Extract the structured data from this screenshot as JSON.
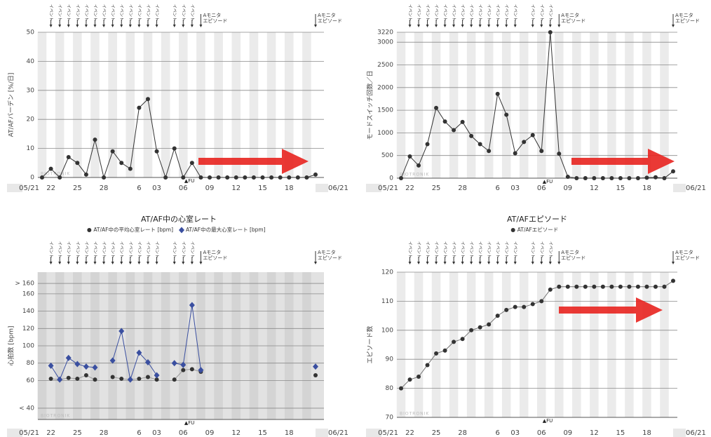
{
  "chart_data": [
    {
      "type": "line",
      "ylabel": "AT/AFバーデン [%/日]",
      "categories": [
        "05/21",
        "22",
        null,
        null,
        "25",
        null,
        null,
        "28",
        null,
        null,
        null,
        "6",
        null,
        "03",
        null,
        null,
        "06",
        null,
        null,
        "09",
        null,
        null,
        "12",
        null,
        null,
        "15",
        null,
        null,
        "18",
        null,
        null,
        "06/21"
      ],
      "series": [
        {
          "color": "#333333",
          "marker": "circle",
          "values": [
            0,
            3,
            0,
            7,
            5,
            1,
            13,
            0,
            9,
            5,
            3,
            24,
            27,
            9,
            0,
            10,
            0,
            5,
            0,
            0,
            0,
            0,
            0,
            0,
            0,
            0,
            0,
            0,
            0,
            0,
            0,
            1
          ]
        }
      ],
      "ylim": [
        0,
        50
      ],
      "yticks": [
        0,
        10,
        20,
        30,
        40,
        50
      ],
      "grid": true
    },
    {
      "type": "line",
      "ylabel": "モードスイッチ回数／日",
      "categories": [
        "05/21",
        "22",
        null,
        null,
        "25",
        null,
        null,
        "28",
        null,
        null,
        null,
        "6",
        null,
        "03",
        null,
        null,
        "06",
        null,
        null,
        "09",
        null,
        null,
        "12",
        null,
        null,
        "15",
        null,
        null,
        "18",
        null,
        null,
        "06/21"
      ],
      "series": [
        {
          "color": "#333333",
          "marker": "circle",
          "values": [
            0,
            480,
            280,
            750,
            1550,
            1250,
            1060,
            1240,
            930,
            750,
            600,
            1860,
            1400,
            550,
            800,
            950,
            600,
            3220,
            540,
            30,
            0,
            0,
            0,
            0,
            0,
            0,
            0,
            0,
            10,
            20,
            0,
            150
          ]
        }
      ],
      "ylim": [
        0,
        3220
      ],
      "yticks": [
        0,
        500,
        1000,
        1500,
        2000,
        2500,
        3000,
        3220
      ],
      "grid": true
    },
    {
      "type": "line",
      "title": "AT/AF中の心室レート",
      "ylabel": "心拍数 [bpm]",
      "categories": [
        "05/21",
        "22",
        null,
        null,
        "25",
        null,
        null,
        "28",
        null,
        null,
        null,
        "6",
        null,
        "03",
        null,
        null,
        "06",
        null,
        null,
        "09",
        null,
        null,
        "12",
        null,
        null,
        "15",
        null,
        null,
        "18",
        null,
        null,
        "06/21"
      ],
      "series": [
        {
          "name": "AT/AF中の平均心室レート [bpm]",
          "color": "#333333",
          "line_color": "#999999",
          "marker": "circle",
          "values": [
            null,
            62,
            61,
            63,
            62,
            66,
            61,
            null,
            64,
            62,
            61,
            62,
            64,
            61,
            null,
            61,
            72,
            73,
            70,
            null,
            null,
            null,
            null,
            null,
            null,
            null,
            null,
            null,
            null,
            null,
            null,
            66
          ]
        },
        {
          "name": "AT/AF中の最大心室レート [bpm]",
          "color": "#3a4fa0",
          "line_color": "#3a4fa0",
          "marker": "diamond",
          "values": [
            null,
            77,
            61,
            86,
            79,
            76,
            75,
            null,
            83,
            117,
            61,
            92,
            81,
            66,
            null,
            80,
            78,
            147,
            72,
            null,
            null,
            null,
            null,
            null,
            null,
            null,
            null,
            null,
            null,
            null,
            null,
            76
          ]
        }
      ],
      "ylim": [
        15,
        185
      ],
      "yticks": [
        {
          "value": 172,
          "label": "> 160"
        },
        160,
        140,
        120,
        100,
        80,
        60,
        {
          "value": 28,
          "label": "< 40"
        }
      ],
      "grid": true
    },
    {
      "type": "line",
      "title": "AT/AFエピソード",
      "ylabel": "エピソード数",
      "categories": [
        "05/21",
        "22",
        null,
        null,
        "25",
        null,
        null,
        "28",
        null,
        null,
        null,
        "6",
        null,
        "03",
        null,
        null,
        "06",
        null,
        null,
        "09",
        null,
        null,
        "12",
        null,
        null,
        "15",
        null,
        null,
        "18",
        null,
        null,
        "06/21"
      ],
      "series": [
        {
          "name": "AT/AFエピソード",
          "color": "#333333",
          "line_color": "#777777",
          "marker": "circle",
          "values": [
            80,
            83,
            84,
            88,
            92,
            93,
            96,
            97,
            100,
            101,
            102,
            105,
            107,
            108,
            108,
            109,
            110,
            114,
            115,
            115,
            115,
            115,
            115,
            115,
            115,
            115,
            115,
            115,
            115,
            115,
            115,
            117
          ]
        }
      ],
      "ylim": [
        70,
        120
      ],
      "yticks": [
        70,
        80,
        90,
        100,
        110,
        120
      ],
      "grid": true
    }
  ],
  "markers": {
    "event_label": "イベント",
    "episode_label": [
      "Aモニタ",
      "エピソード"
    ],
    "follow_up": "▲FU",
    "watermark": "BIOTRONIK",
    "events": [
      false,
      true,
      true,
      true,
      true,
      true,
      true,
      true,
      true,
      true,
      true,
      true,
      true,
      true,
      false,
      true,
      true,
      true,
      false,
      false,
      false,
      false,
      false,
      false,
      false,
      false,
      false,
      false,
      false,
      false,
      false,
      false
    ],
    "episodes": [
      false,
      false,
      false,
      false,
      false,
      false,
      false,
      false,
      false,
      false,
      false,
      false,
      false,
      false,
      false,
      false,
      false,
      false,
      true,
      false,
      false,
      false,
      false,
      false,
      false,
      false,
      false,
      false,
      false,
      false,
      false,
      true
    ]
  }
}
